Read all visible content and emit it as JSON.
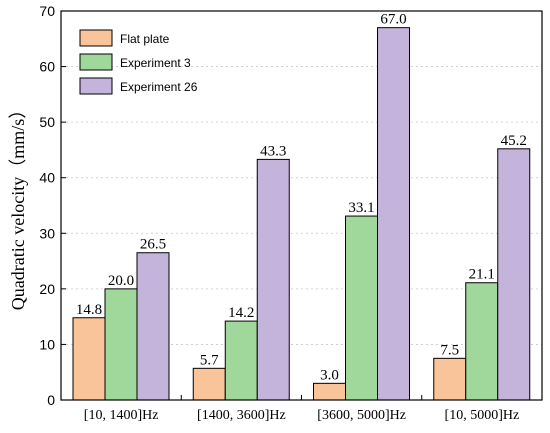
{
  "chart_data": {
    "type": "bar",
    "categories": [
      "[10, 1400]Hz",
      "[1400, 3600]Hz",
      "[3600, 5000]Hz",
      "[10, 5000]Hz"
    ],
    "series": [
      {
        "name": "Flat plate",
        "values": [
          14.8,
          5.7,
          3.0,
          7.5
        ],
        "labels": [
          "14.8",
          "5.7",
          "3.0",
          "7.5"
        ],
        "color": "#F9C49A"
      },
      {
        "name": "Experiment 3",
        "values": [
          20.0,
          14.2,
          33.1,
          21.1
        ],
        "labels": [
          "20.0",
          "14.2",
          "33.1",
          "21.1"
        ],
        "color": "#9FD89A"
      },
      {
        "name": "Experiment 26",
        "values": [
          26.5,
          43.3,
          67.0,
          45.2
        ],
        "labels": [
          "26.5",
          "43.3",
          "67.0",
          "45.2"
        ],
        "color": "#C4B4DC"
      }
    ],
    "title": "",
    "xlabel": "",
    "ylabel": "Quadratic velocity（mm/s）",
    "ylim": [
      0,
      70
    ],
    "yticks": [
      0,
      10,
      20,
      30,
      40,
      50,
      60,
      70
    ],
    "grid": true,
    "legend_position": "top-left"
  }
}
